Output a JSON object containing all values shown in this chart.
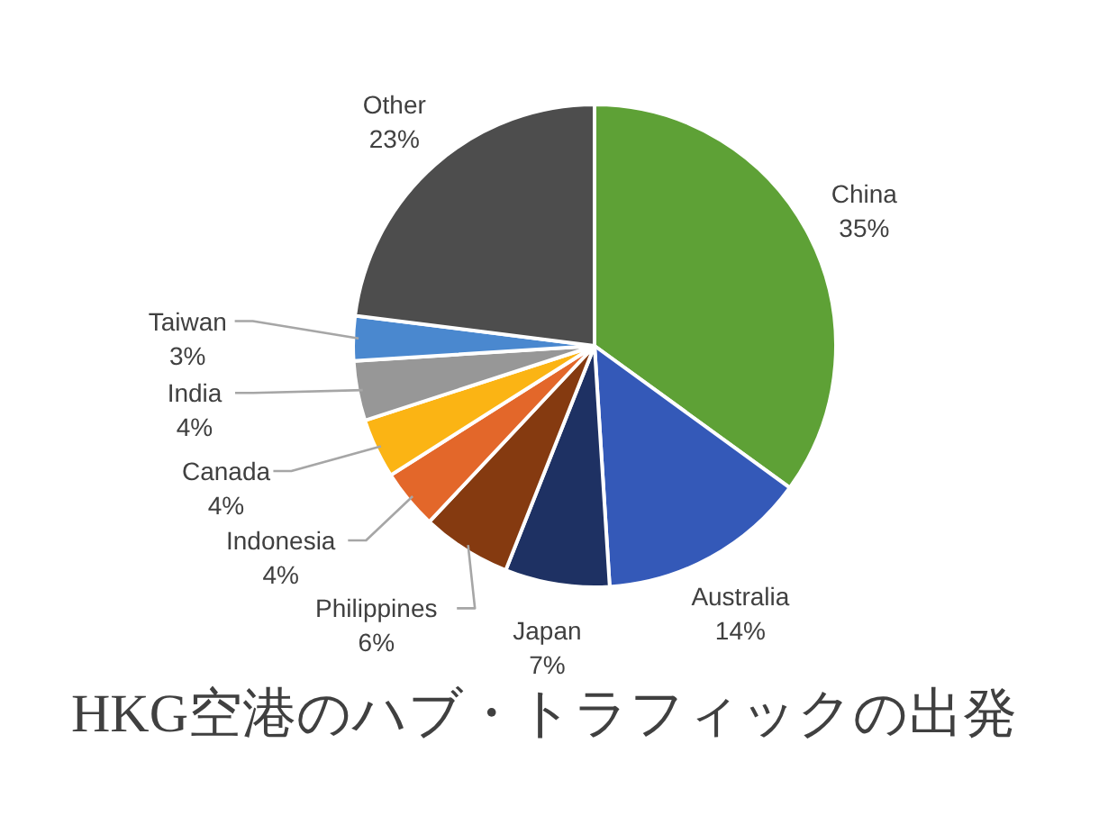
{
  "chart_data": {
    "type": "pie",
    "title": "HKG空港のハブ・トラフィックの出発",
    "categories": [
      "China",
      "Australia",
      "Japan",
      "Philippines",
      "Indonesia",
      "Canada",
      "India",
      "Taiwan",
      "Other"
    ],
    "values": [
      35,
      14,
      7,
      6,
      4,
      4,
      4,
      3,
      23
    ],
    "value_labels": [
      "35%",
      "14%",
      "7%",
      "6%",
      "4%",
      "4%",
      "4%",
      "3%",
      "23%"
    ],
    "colors": [
      "#5ea136",
      "#3459b8",
      "#1e3163",
      "#853a10",
      "#e3672a",
      "#fbb414",
      "#979797",
      "#4a88cf",
      "#4d4d4d"
    ]
  }
}
